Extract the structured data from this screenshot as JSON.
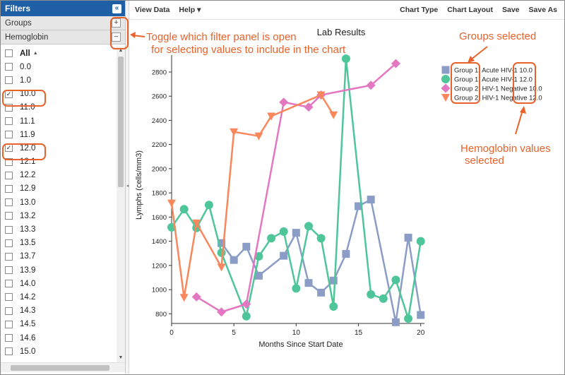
{
  "filters": {
    "title": "Filters",
    "collapse_glyph": "«",
    "sections": [
      {
        "label": "Groups",
        "button": "+"
      },
      {
        "label": "Hemoglobin",
        "button": "−"
      }
    ],
    "all_label": "All",
    "items": [
      {
        "label": "0.0",
        "checked": false
      },
      {
        "label": "1.0",
        "checked": false
      },
      {
        "label": "10.0",
        "checked": true
      },
      {
        "label": "11.0",
        "checked": false
      },
      {
        "label": "11.1",
        "checked": false
      },
      {
        "label": "11.9",
        "checked": false
      },
      {
        "label": "12.0",
        "checked": true
      },
      {
        "label": "12.1",
        "checked": false
      },
      {
        "label": "12.2",
        "checked": false
      },
      {
        "label": "12.9",
        "checked": false
      },
      {
        "label": "13.0",
        "checked": false
      },
      {
        "label": "13.2",
        "checked": false
      },
      {
        "label": "13.3",
        "checked": false
      },
      {
        "label": "13.5",
        "checked": false
      },
      {
        "label": "13.7",
        "checked": false
      },
      {
        "label": "13.9",
        "checked": false
      },
      {
        "label": "14.0",
        "checked": false
      },
      {
        "label": "14.2",
        "checked": false
      },
      {
        "label": "14.3",
        "checked": false
      },
      {
        "label": "14.5",
        "checked": false
      },
      {
        "label": "14.6",
        "checked": false
      },
      {
        "label": "15.0",
        "checked": false
      }
    ]
  },
  "toolbar": {
    "view_data": "View Data",
    "help": "Help ▾",
    "chart_type": "Chart Type",
    "chart_layout": "Chart Layout",
    "save": "Save",
    "save_as": "Save As"
  },
  "annotations": {
    "toggle_line1": "Toggle which filter panel is open",
    "toggle_line2": "for selecting values to include in the chart",
    "groups": "Groups selected",
    "hemoglobin_line1": "Hemoglobin values",
    "hemoglobin_line2": "selected",
    "color": "#e8622b"
  },
  "chart_data": {
    "type": "line",
    "title": "Lab Results",
    "xlabel": "Months Since Start Date",
    "ylabel": "Lymphs (cells/mm3)",
    "xlim": [
      0,
      20.3
    ],
    "ylim": [
      720,
      2940
    ],
    "xticks": [
      0,
      5,
      10,
      15,
      20
    ],
    "yticks": [
      800,
      1000,
      1200,
      1400,
      1600,
      1800,
      2000,
      2200,
      2400,
      2600,
      2800
    ],
    "legend_position": "top-right",
    "series": [
      {
        "name": "Group 1: Acute HIV-1 10.0",
        "color": "#8b9dc6",
        "marker": "square",
        "x": [
          4,
          5,
          6,
          7,
          9,
          10,
          11,
          12,
          13,
          14,
          15,
          16,
          18,
          19,
          20
        ],
        "y": [
          1385,
          1245,
          1355,
          1115,
          1280,
          1470,
          1055,
          975,
          1075,
          1295,
          1690,
          1745,
          730,
          1430,
          790
        ]
      },
      {
        "name": "Group 1: Acute HIV-1 12.0",
        "color": "#4fc59a",
        "marker": "circle",
        "x": [
          0,
          1,
          2,
          3,
          4,
          6,
          7,
          8,
          9,
          10,
          11,
          12,
          13,
          14,
          16,
          17,
          18,
          19,
          20
        ],
        "y": [
          1515,
          1665,
          1510,
          1700,
          1305,
          780,
          1275,
          1425,
          1480,
          1010,
          1525,
          1425,
          860,
          2910,
          960,
          925,
          1080,
          760,
          1400
        ]
      },
      {
        "name": "Group 2: HIV-1 Negative 10.0",
        "color": "#e377c2",
        "marker": "diamond",
        "x": [
          2,
          4,
          6,
          9,
          11,
          12,
          16,
          18
        ],
        "y": [
          940,
          815,
          880,
          2550,
          2510,
          2610,
          2690,
          2870
        ]
      },
      {
        "name": "Group 2: HIV-1 Negative 12.0",
        "color": "#f8875c",
        "marker": "triangle-down",
        "x": [
          0,
          1,
          2,
          4,
          5,
          7,
          8,
          12,
          13
        ],
        "y": [
          1715,
          935,
          1550,
          1185,
          2305,
          2270,
          2435,
          2610,
          2445
        ]
      }
    ]
  }
}
